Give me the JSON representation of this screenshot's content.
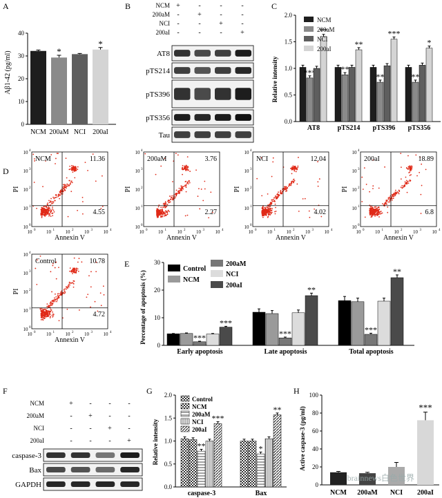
{
  "panel_letters": {
    "a": "A",
    "b": "B",
    "c": "C",
    "d": "D",
    "e": "E",
    "f": "F",
    "g": "G",
    "h": "H"
  },
  "groups": [
    "NCM",
    "200aM",
    "NCI",
    "200aI"
  ],
  "signs": {
    "plus": "+",
    "minus": "-"
  },
  "colors": {
    "ncm": "#1e1e1e",
    "aM": "#8a8a8a",
    "nci": "#5e5e5e",
    "aI": "#d4d4d4",
    "control": "#000000",
    "dot": "#e02a18"
  },
  "panelA": {
    "ylabel": "Aβ1-42 (pg/ml)",
    "sig_star": "*",
    "chart_data": {
      "type": "bar",
      "categories": [
        "NCM",
        "200aM",
        "NCI",
        "200aI"
      ],
      "values": [
        32.2,
        29.3,
        30.8,
        32.8
      ],
      "errors": [
        0.4,
        1.0,
        0.3,
        0.9
      ],
      "ylim": [
        0,
        40
      ],
      "yticks": [
        0,
        10,
        20,
        30,
        40
      ],
      "ytick_labels": [
        "0",
        "10",
        "20",
        "30",
        "40"
      ],
      "sig": [
        "",
        "*",
        "",
        "*"
      ]
    }
  },
  "panelB": {
    "bands": [
      "AT8",
      "pTS214",
      "pTS396",
      "pTS356",
      "Tau"
    ]
  },
  "panelC": {
    "ylabel": "Relative intensity",
    "legend": [
      "NCM",
      "200aM",
      "NCI",
      "200aI"
    ],
    "chart_data": {
      "type": "bar",
      "categories": [
        "AT8",
        "pTS214",
        "pTS396",
        "pTS356"
      ],
      "series": [
        {
          "name": "NCM",
          "values": [
            1.02,
            1.02,
            1.02,
            1.02
          ]
        },
        {
          "name": "200aM",
          "values": [
            0.82,
            0.88,
            0.74,
            0.74
          ]
        },
        {
          "name": "NCI",
          "values": [
            1.0,
            1.02,
            1.05,
            1.06
          ]
        },
        {
          "name": "200aI",
          "values": [
            1.6,
            1.35,
            1.55,
            1.38
          ]
        }
      ],
      "sig": [
        [
          "",
          "***",
          "",
          "**"
        ],
        [
          "",
          "**",
          "",
          "**"
        ],
        [
          "",
          "**",
          "",
          "***"
        ],
        [
          "",
          "**",
          "",
          "*"
        ]
      ],
      "ylim": [
        0,
        2.0
      ],
      "yticks": [
        0,
        0.5,
        1.0,
        1.5,
        2.0
      ],
      "ytick_labels": [
        "0.0",
        "0.5",
        "1.0",
        "1.5",
        "2.0"
      ]
    }
  },
  "panelD": {
    "xlabel": "Annexin V",
    "ylabel": "PI",
    "tick_exps": [
      "0",
      "1",
      "2",
      "3",
      "4"
    ],
    "tick_base": "10",
    "plots": [
      {
        "name": "NCM",
        "ur": "11.36",
        "lr": "4.55"
      },
      {
        "name": "200aM",
        "ur": "3.76",
        "lr": "2.27"
      },
      {
        "name": "NCI",
        "ur": "12.04",
        "lr": "4.02"
      },
      {
        "name": "200aI",
        "ur": "18.89",
        "lr": "6.8"
      },
      {
        "name": "Control",
        "ur": "10.78",
        "lr": "4.72"
      }
    ]
  },
  "panelE": {
    "ylabel": "Percentage of apoptosis (%)",
    "legend": [
      "Control",
      "NCM",
      "200aM",
      "NCI",
      "200aI"
    ],
    "chart_data": {
      "type": "bar",
      "categories": [
        "Early apoptosis",
        "Late apoptosis",
        "Total apoptosis"
      ],
      "series": [
        {
          "name": "Control",
          "values": [
            4.2,
            12.0,
            16.2
          ]
        },
        {
          "name": "NCM",
          "values": [
            4.3,
            11.5,
            15.8
          ]
        },
        {
          "name": "200aM",
          "values": [
            1.3,
            2.7,
            4.0
          ]
        },
        {
          "name": "NCI",
          "values": [
            4.1,
            11.8,
            16.0
          ]
        },
        {
          "name": "200aI",
          "values": [
            6.6,
            18.0,
            24.5
          ]
        }
      ],
      "errors": [
        [
          0.1,
          0.2,
          0.2,
          0.2,
          0.3
        ],
        [
          1.2,
          1.1,
          0.3,
          1.0,
          0.9
        ],
        [
          1.5,
          1.3,
          0.4,
          1.1,
          1.0
        ]
      ],
      "sig": [
        [
          "",
          "",
          "***",
          "",
          "***"
        ],
        [
          "",
          "",
          "***",
          "",
          "**"
        ],
        [
          "",
          "",
          "***",
          "",
          "**"
        ]
      ],
      "ylim": [
        0,
        30
      ],
      "yticks": [
        0,
        10,
        20,
        30
      ],
      "ytick_labels": [
        "0",
        "10",
        "20",
        "30"
      ]
    }
  },
  "panelF": {
    "bands": [
      "caspase-3",
      "Bax",
      "GAPDH"
    ]
  },
  "panelG": {
    "ylabel": "Relative intensity",
    "legend": [
      "Control",
      "NCM",
      "200aM",
      "NCI",
      "200aI"
    ],
    "chart_data": {
      "type": "bar",
      "categories": [
        "caspase-3",
        "Bax"
      ],
      "series": [
        {
          "name": "Control",
          "values": [
            1.05,
            1.0
          ]
        },
        {
          "name": "NCM",
          "values": [
            1.03,
            1.0
          ]
        },
        {
          "name": "200aM",
          "values": [
            0.78,
            0.72
          ]
        },
        {
          "name": "NCI",
          "values": [
            1.0,
            1.05
          ]
        },
        {
          "name": "200aI",
          "values": [
            1.38,
            1.57
          ]
        }
      ],
      "sig": [
        [
          "",
          "",
          "**",
          "",
          "***"
        ],
        [
          "",
          "",
          "*",
          "",
          "**"
        ]
      ],
      "ylim": [
        0,
        2.0
      ],
      "yticks": [
        0,
        0.5,
        1.0,
        1.5,
        2.0
      ],
      "ytick_labels": [
        "0.0",
        "0.5",
        "1.0",
        "1.5",
        "2.0"
      ]
    }
  },
  "panelH": {
    "ylabel": "Active caspase-3 (pg/ml)",
    "sig_star": "***",
    "watermark": "brainnews白色世界",
    "chart_data": {
      "type": "bar",
      "categories": [
        "NCM",
        "200aM",
        "NCI",
        "200aI"
      ],
      "values": [
        14,
        13,
        20,
        72
      ],
      "errors": [
        1,
        1,
        5,
        9
      ],
      "ylim": [
        0,
        100
      ],
      "yticks": [
        0,
        20,
        40,
        60,
        80,
        100
      ],
      "ytick_labels": [
        "0",
        "20",
        "40",
        "60",
        "80",
        "100"
      ],
      "sig": [
        "",
        "",
        "",
        "***"
      ]
    }
  }
}
